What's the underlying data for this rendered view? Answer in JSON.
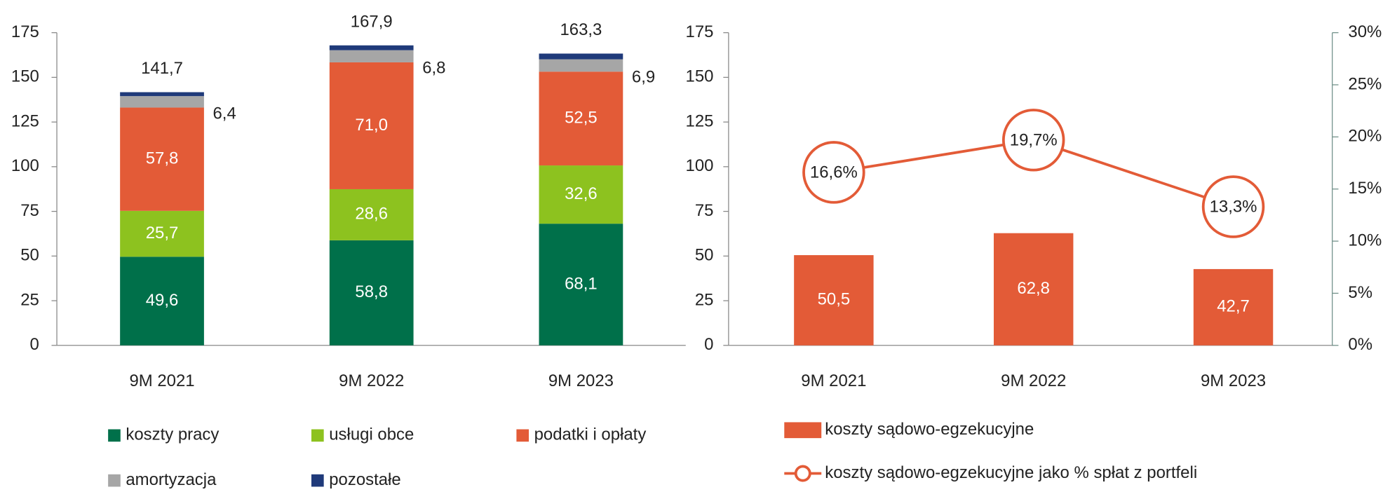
{
  "chart_data": [
    {
      "type": "bar",
      "stacked": true,
      "categories": [
        "9M 2021",
        "9M 2022",
        "9M 2023"
      ],
      "series": [
        {
          "name": "koszty pracy",
          "color": "#00704a",
          "values": [
            49.6,
            58.8,
            68.1
          ],
          "value_labels": [
            "49,6",
            "58,8",
            "68,1"
          ]
        },
        {
          "name": "usługi obce",
          "color": "#8dc21f",
          "values": [
            25.7,
            28.6,
            32.6
          ],
          "value_labels": [
            "25,7",
            "28,6",
            "32,6"
          ]
        },
        {
          "name": "podatki i opłaty",
          "color": "#e35b37",
          "values": [
            57.8,
            71.0,
            52.5
          ],
          "value_labels": [
            "57,8",
            "71,0",
            "52,5"
          ]
        },
        {
          "name": "amortyzacja",
          "color": "#a6a6a6",
          "values": [
            6.4,
            6.8,
            6.9
          ],
          "value_labels": [
            "6,4",
            "6,8",
            "6,9"
          ]
        },
        {
          "name": "pozostałe",
          "color": "#1f3a7a",
          "values": [
            2.2,
            2.7,
            3.2
          ]
        }
      ],
      "totals": [
        141.7,
        167.9,
        163.3
      ],
      "total_labels": [
        "141,7",
        "167,9",
        "163,3"
      ],
      "ylim": [
        0,
        175
      ],
      "yticks": [
        0,
        25,
        50,
        75,
        100,
        125,
        150,
        175
      ]
    },
    {
      "type": "bar",
      "categories": [
        "9M 2021",
        "9M 2022",
        "9M 2023"
      ],
      "series": [
        {
          "name": "koszty sądowo-egzekucyjne",
          "color": "#e35b37",
          "values": [
            50.5,
            62.8,
            42.7
          ],
          "value_labels": [
            "50,5",
            "62,8",
            "42,7"
          ]
        },
        {
          "name": "koszty sądowo-egzekucyjne jako % spłat z portfeli",
          "type": "line",
          "axis": "y2",
          "color": "#e35b37",
          "values": [
            16.6,
            19.7,
            13.3
          ],
          "value_labels": [
            "16,6%",
            "19,7%",
            "13,3%"
          ]
        }
      ],
      "ylim": [
        0,
        175
      ],
      "yticks": [
        0,
        25,
        50,
        75,
        100,
        125,
        150,
        175
      ],
      "y2lim": [
        0,
        30
      ],
      "y2ticks": [
        {
          "value": 0,
          "label": "0%"
        },
        {
          "value": 5,
          "label": "5%"
        },
        {
          "value": 10,
          "label": "10%"
        },
        {
          "value": 15,
          "label": "15%"
        },
        {
          "value": 20,
          "label": "20%"
        },
        {
          "value": 25,
          "label": "25%"
        },
        {
          "value": 30,
          "label": "30%"
        }
      ]
    }
  ]
}
